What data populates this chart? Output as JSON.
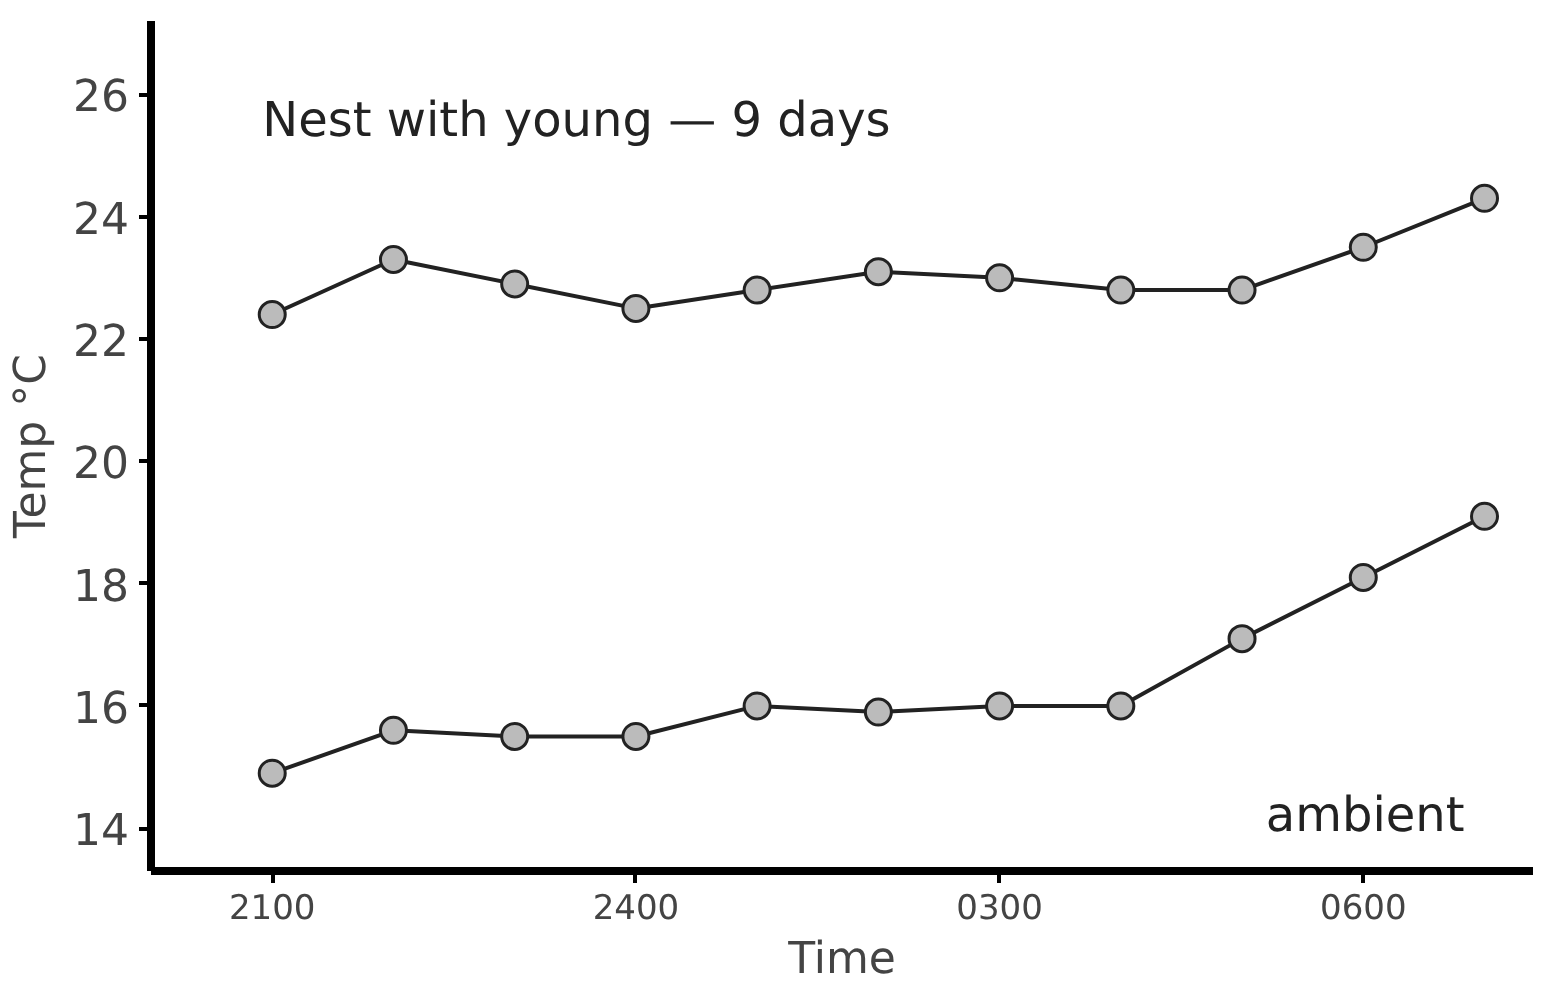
{
  "chart_data": {
    "type": "line",
    "xlabel": "Time",
    "ylabel": "Temp °C",
    "categories": [
      "2100",
      null,
      null,
      "2400",
      null,
      null,
      "0300",
      null,
      null,
      "0600",
      null
    ],
    "series": [
      {
        "name": "Nest with young — 9 days",
        "color": "#222222",
        "values": [
          22.4,
          23.3,
          22.9,
          22.5,
          22.8,
          23.1,
          23.0,
          22.8,
          22.8,
          23.5,
          24.3
        ]
      },
      {
        "name": "ambient",
        "color": "#222222",
        "values": [
          14.9,
          15.6,
          15.5,
          15.5,
          16.0,
          15.9,
          16.0,
          16.0,
          17.1,
          18.1,
          19.1
        ]
      }
    ],
    "ylim": [
      13.3,
      27.2
    ],
    "yticks": [
      14,
      16,
      18,
      20,
      22,
      24,
      26
    ],
    "grid": false,
    "marker": "circle",
    "line_style": "solid"
  }
}
